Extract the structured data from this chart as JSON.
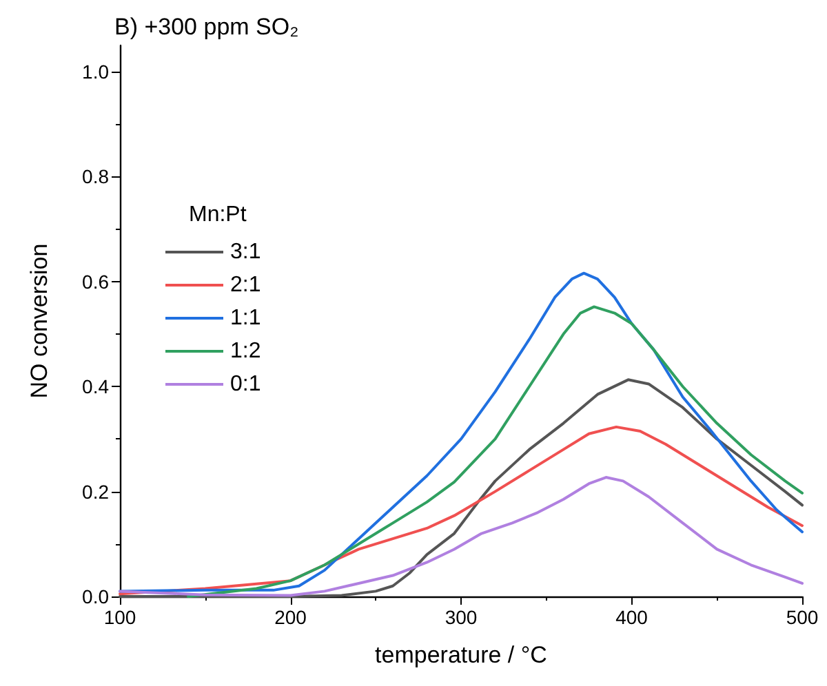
{
  "chart_data": {
    "type": "line",
    "title": "B) +300 ppm SO₂",
    "xlabel": "temperature / °C",
    "ylabel": "NO conversion",
    "legend_title": "Mn:Pt",
    "legend": "top left",
    "grid": false,
    "marker": "none",
    "line_style": "solid",
    "xlim": [
      100,
      500
    ],
    "xticks": [
      100,
      200,
      300,
      400,
      500
    ],
    "ylim": [
      0,
      1.05
    ],
    "yticks": [
      {
        "value": 0,
        "label": "0.0"
      },
      {
        "value": 0.2,
        "label": "0.2"
      },
      {
        "value": 0.4,
        "label": "0.4"
      },
      {
        "value": 0.6,
        "label": "0.6"
      },
      {
        "value": 0.8,
        "label": "0.8"
      },
      {
        "value": 1.0,
        "label": "1.0"
      }
    ],
    "series": [
      {
        "name": "3:1",
        "color": "#555555",
        "x": [
          100,
          200,
          230,
          250,
          260,
          270,
          280,
          296,
          310,
          320,
          340,
          360,
          380,
          398,
          410,
          430,
          450,
          470,
          490,
          500
        ],
        "values": [
          0,
          0,
          0.002,
          0.01,
          0.02,
          0.045,
          0.08,
          0.12,
          0.18,
          0.22,
          0.28,
          0.33,
          0.385,
          0.413,
          0.405,
          0.36,
          0.3,
          0.25,
          0.2,
          0.174
        ]
      },
      {
        "name": "2:1",
        "color": "#f05050",
        "x": [
          100,
          150,
          200,
          220,
          240,
          260,
          280,
          296,
          320,
          340,
          360,
          375,
          391,
          405,
          420,
          440,
          460,
          480,
          500
        ],
        "values": [
          0.005,
          0.015,
          0.03,
          0.06,
          0.09,
          0.11,
          0.13,
          0.154,
          0.2,
          0.24,
          0.28,
          0.31,
          0.323,
          0.315,
          0.29,
          0.25,
          0.21,
          0.17,
          0.135
        ]
      },
      {
        "name": "1:1",
        "color": "#2070e0",
        "x": [
          100,
          150,
          190,
          205,
          220,
          240,
          260,
          280,
          300,
          320,
          340,
          355,
          365,
          372,
          380,
          390,
          400,
          413,
          430,
          446,
          470,
          485,
          500
        ],
        "values": [
          0.01,
          0.012,
          0.012,
          0.02,
          0.05,
          0.11,
          0.17,
          0.23,
          0.3,
          0.39,
          0.49,
          0.57,
          0.605,
          0.616,
          0.605,
          0.57,
          0.52,
          0.47,
          0.38,
          0.318,
          0.22,
          0.165,
          0.123
        ]
      },
      {
        "name": "1:2",
        "color": "#30a060",
        "x": [
          140,
          180,
          200,
          220,
          240,
          260,
          280,
          296,
          320,
          340,
          360,
          370,
          378,
          390,
          400,
          413,
          430,
          450,
          470,
          490,
          500
        ],
        "values": [
          0,
          0.015,
          0.03,
          0.06,
          0.1,
          0.14,
          0.18,
          0.218,
          0.3,
          0.4,
          0.5,
          0.54,
          0.552,
          0.54,
          0.52,
          0.47,
          0.4,
          0.33,
          0.27,
          0.22,
          0.197
        ]
      },
      {
        "name": "0:1",
        "color": "#b080e0",
        "x": [
          100,
          150,
          200,
          220,
          240,
          260,
          280,
          296,
          312,
          330,
          345,
          360,
          375,
          385,
          395,
          410,
          430,
          450,
          470,
          490,
          500
        ],
        "values": [
          0.01,
          0.003,
          0.002,
          0.01,
          0.025,
          0.04,
          0.065,
          0.09,
          0.12,
          0.14,
          0.16,
          0.185,
          0.215,
          0.227,
          0.22,
          0.19,
          0.14,
          0.09,
          0.06,
          0.037,
          0.025
        ]
      }
    ]
  }
}
